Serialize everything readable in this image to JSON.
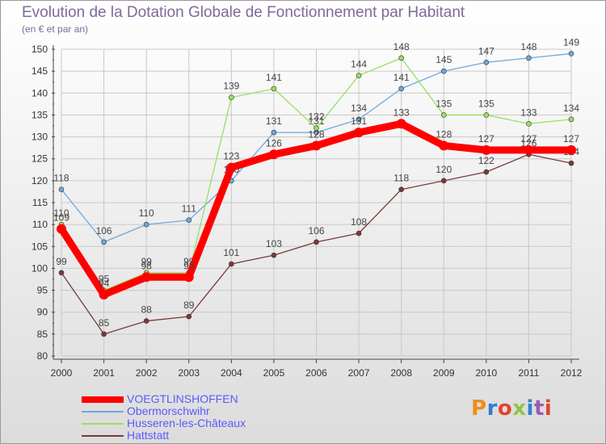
{
  "header": {
    "title": "Evolution de la Dotation Globale de Fonctionnement par Habitant",
    "subtitle": "(en € et par an)"
  },
  "logo": {
    "text": "Proxiti",
    "colors": [
      "#f08c1a",
      "#2f7fd0",
      "#e2442a",
      "#8dc63f",
      "#2f7fd0",
      "#9b59b6",
      "#e2442a"
    ]
  },
  "chart_data": {
    "type": "line",
    "x": [
      "2000",
      "2001",
      "2002",
      "2003",
      "2004",
      "2005",
      "2006",
      "2007",
      "2008",
      "2009",
      "2010",
      "2011",
      "2012"
    ],
    "ylim": [
      80,
      150
    ],
    "yticks": [
      80,
      85,
      90,
      95,
      100,
      105,
      110,
      115,
      120,
      125,
      130,
      135,
      140,
      145,
      150
    ],
    "xlabel": "",
    "ylabel": "",
    "grid": true,
    "legend_position": "bottom-left",
    "series": [
      {
        "name": "VOEGTLINSHOFFEN",
        "color": "#ff0000",
        "values": [
          109,
          94,
          98,
          98,
          123,
          126,
          128,
          131,
          133,
          128,
          127,
          127,
          127
        ]
      },
      {
        "name": "Obermorschwihr",
        "color": "#6fa8dc",
        "values": [
          118,
          106,
          110,
          111,
          120,
          131,
          131,
          134,
          141,
          145,
          147,
          148,
          149
        ]
      },
      {
        "name": "Husseren-les-Châteaux",
        "color": "#99e05e",
        "values": [
          110,
          95,
          99,
          99,
          139,
          141,
          132,
          144,
          148,
          135,
          135,
          133,
          134
        ]
      },
      {
        "name": "Hattstatt",
        "color": "#7a3a3a",
        "values": [
          99,
          85,
          88,
          89,
          101,
          103,
          106,
          108,
          118,
          120,
          122,
          126,
          124
        ]
      }
    ]
  }
}
